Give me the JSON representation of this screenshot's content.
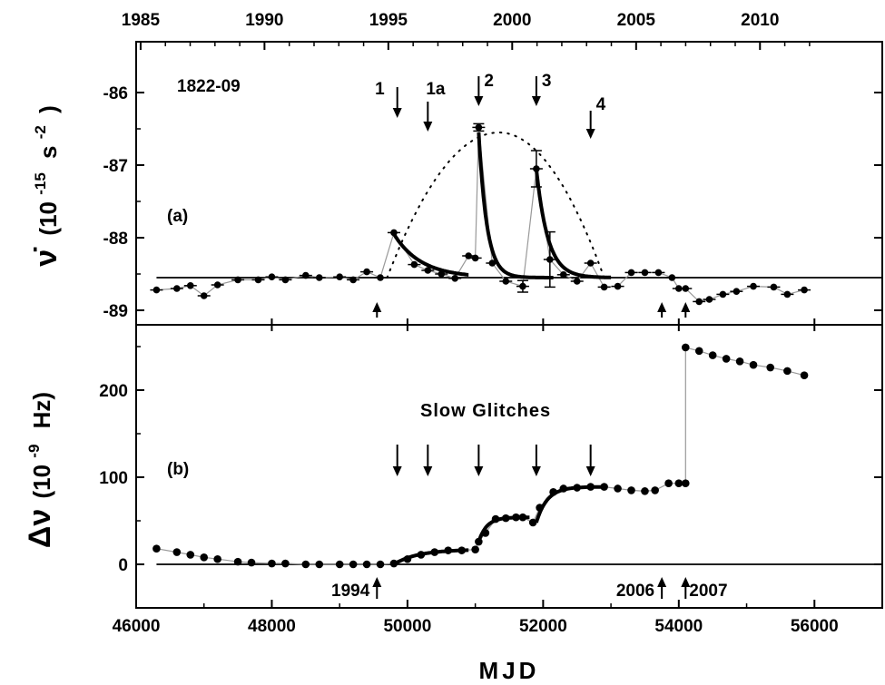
{
  "chart_data": [
    {
      "type": "scatter",
      "panel_label": "(a)",
      "object_label": "1822-09",
      "ylabel": "ν̇ (10⁻¹⁵ s⁻²)",
      "ylabel_parts": {
        "sym": "ν̇",
        "base": "(10",
        "exp1": "-15",
        "unit": "s",
        "exp2": "-2",
        "close": ")"
      },
      "xlabel": "MJD",
      "xlim": [
        46000,
        57000
      ],
      "ylim": [
        -89.2,
        -85.3
      ],
      "xticks": [
        46000,
        48000,
        50000,
        52000,
        54000,
        56000
      ],
      "yticks": [
        -86,
        -87,
        -88,
        -89
      ],
      "ytick_labels": [
        "-86",
        "-87",
        "-88",
        "-89"
      ],
      "top_axis": {
        "label_years": [
          1985,
          1990,
          1995,
          2000,
          2005,
          2010
        ],
        "year_mjd": [
          46066,
          47892,
          49718,
          51544,
          53371,
          55197
        ]
      },
      "baseline": -88.55,
      "points": [
        [
          46300,
          -88.72
        ],
        [
          46600,
          -88.7
        ],
        [
          46800,
          -88.66
        ],
        [
          47000,
          -88.8
        ],
        [
          47200,
          -88.65
        ],
        [
          47500,
          -88.58
        ],
        [
          47800,
          -88.58
        ],
        [
          48000,
          -88.54
        ],
        [
          48200,
          -88.58
        ],
        [
          48500,
          -88.52
        ],
        [
          48700,
          -88.55
        ],
        [
          49000,
          -88.54
        ],
        [
          49200,
          -88.58
        ],
        [
          49400,
          -88.47
        ],
        [
          49600,
          -88.55
        ],
        [
          49800,
          -87.93
        ],
        [
          50100,
          -88.37
        ],
        [
          50300,
          -88.45
        ],
        [
          50500,
          -88.5
        ],
        [
          50700,
          -88.56
        ],
        [
          50900,
          -88.25
        ],
        [
          51000,
          -88.28
        ],
        [
          51050,
          -86.48
        ],
        [
          51250,
          -88.35
        ],
        [
          51450,
          -88.6
        ],
        [
          51700,
          -88.67
        ],
        [
          51900,
          -87.05
        ],
        [
          52100,
          -88.3
        ],
        [
          52300,
          -88.51
        ],
        [
          52500,
          -88.6
        ],
        [
          52700,
          -88.35
        ],
        [
          52900,
          -88.68
        ],
        [
          53100,
          -88.67
        ],
        [
          53300,
          -88.48
        ],
        [
          53500,
          -88.48
        ],
        [
          53700,
          -88.48
        ],
        [
          53900,
          -88.55
        ],
        [
          54000,
          -88.7
        ],
        [
          54100,
          -88.7
        ],
        [
          54300,
          -88.88
        ],
        [
          54450,
          -88.85
        ],
        [
          54650,
          -88.78
        ],
        [
          54850,
          -88.74
        ],
        [
          55100,
          -88.67
        ],
        [
          55400,
          -88.68
        ],
        [
          55600,
          -88.78
        ],
        [
          55850,
          -88.72
        ]
      ],
      "error_bars": [
        {
          "x": 51050,
          "y": -86.48,
          "err": 0.05
        },
        {
          "x": 51900,
          "y": -87.05,
          "err": 0.25
        },
        {
          "x": 52100,
          "y": -88.3,
          "err": 0.38
        },
        {
          "x": 51700,
          "y": -88.67,
          "err": 0.08
        }
      ],
      "fit_curves": [
        {
          "x_start": 49800,
          "y_start": -87.95,
          "tau": 400
        },
        {
          "x_start": 51050,
          "y_start": -86.55,
          "tau": 120
        },
        {
          "x_start": 51900,
          "y_start": -87.05,
          "tau": 170
        }
      ],
      "envelope": {
        "peak_x": 51350,
        "peak_y": -86.55,
        "x_range": [
          49700,
          52900
        ]
      },
      "glitch_arrows": [
        {
          "label": "1",
          "x": 49850
        },
        {
          "label": "1a",
          "x": 50300
        },
        {
          "label": "2",
          "x": 51050
        },
        {
          "label": "3",
          "x": 51900
        },
        {
          "label": "4",
          "x": 52700
        }
      ],
      "normal_glitch_arrows_x": [
        49550,
        53750,
        54100
      ]
    },
    {
      "type": "scatter",
      "panel_label": "(b)",
      "annotation": "Slow Glitches",
      "ylabel": "Δν (10⁻⁹ Hz)",
      "ylabel_parts": {
        "sym": "Δν",
        "base": "(10",
        "exp1": "-9",
        "unit": "Hz)"
      },
      "xlabel": "MJD",
      "xlim": [
        46000,
        57000
      ],
      "ylim": [
        -50,
        275
      ],
      "xticks": [
        46000,
        48000,
        50000,
        52000,
        54000,
        56000
      ],
      "xtick_labels": [
        "46000",
        "48000",
        "50000",
        "52000",
        "54000",
        "56000"
      ],
      "yticks": [
        0,
        100,
        200
      ],
      "ytick_labels": [
        "0",
        "100",
        "200"
      ],
      "baseline": 0,
      "points": [
        [
          46300,
          18
        ],
        [
          46600,
          14
        ],
        [
          46800,
          11
        ],
        [
          47000,
          8
        ],
        [
          47200,
          6
        ],
        [
          47500,
          3
        ],
        [
          47700,
          2
        ],
        [
          48000,
          1
        ],
        [
          48200,
          1
        ],
        [
          48500,
          0
        ],
        [
          48700,
          0
        ],
        [
          49000,
          0
        ],
        [
          49200,
          0
        ],
        [
          49400,
          0
        ],
        [
          49600,
          0
        ],
        [
          49800,
          1
        ],
        [
          50000,
          6
        ],
        [
          50200,
          11
        ],
        [
          50400,
          14
        ],
        [
          50600,
          16
        ],
        [
          50800,
          16
        ],
        [
          51000,
          17
        ],
        [
          51050,
          26
        ],
        [
          51150,
          36
        ],
        [
          51300,
          52
        ],
        [
          51450,
          53
        ],
        [
          51600,
          54
        ],
        [
          51700,
          54
        ],
        [
          51850,
          48
        ],
        [
          51950,
          65
        ],
        [
          52150,
          83
        ],
        [
          52300,
          87
        ],
        [
          52500,
          88
        ],
        [
          52700,
          89
        ],
        [
          52900,
          89
        ],
        [
          53100,
          87
        ],
        [
          53300,
          85
        ],
        [
          53500,
          84
        ],
        [
          53650,
          85
        ],
        [
          53850,
          93
        ],
        [
          54000,
          93
        ],
        [
          54100,
          93
        ],
        [
          54100,
          249
        ],
        [
          54300,
          245
        ],
        [
          54500,
          240
        ],
        [
          54700,
          236
        ],
        [
          54900,
          233
        ],
        [
          55100,
          229
        ],
        [
          55350,
          226
        ],
        [
          55600,
          222
        ],
        [
          55850,
          217
        ]
      ],
      "slow_glitch_arrows_x": [
        49850,
        50300,
        51050,
        51900,
        52700
      ],
      "normal_glitch_labels": [
        {
          "label": "1994",
          "x": 49550
        },
        {
          "label": "2006",
          "x": 53750
        },
        {
          "label": "2007",
          "x": 54100
        }
      ]
    }
  ],
  "colors": {
    "ink": "#000000",
    "connector": "#999999",
    "background": "#ffffff"
  }
}
